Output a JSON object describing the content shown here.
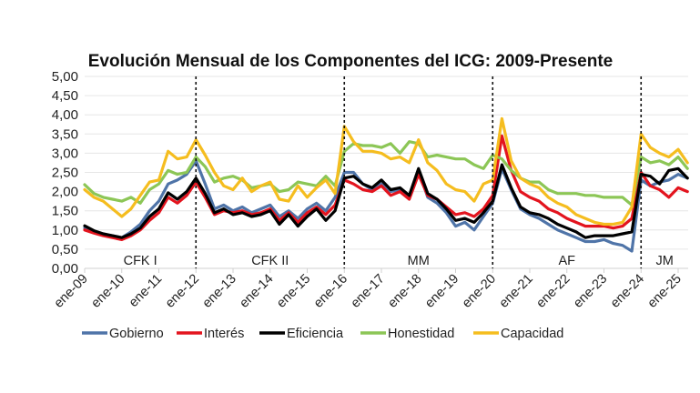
{
  "chart_data": {
    "type": "line",
    "title": "Evolución Mensual de los Componentes del ICG: 2009-Presente",
    "xlabel": "",
    "ylabel": "",
    "ylim": [
      0,
      5
    ],
    "xlim": [
      2009.0,
      2025.3
    ],
    "grid": true,
    "legend_position": "bottom",
    "y_ticks": [
      "0,00",
      "0,50",
      "1,00",
      "1,50",
      "2,00",
      "2,50",
      "3,00",
      "3,50",
      "4,00",
      "4,50",
      "5,00"
    ],
    "y_tick_values": [
      0,
      0.5,
      1,
      1.5,
      2,
      2.5,
      3,
      3.5,
      4,
      4.5,
      5
    ],
    "x_ticks": [
      "ene-09",
      "ene-10",
      "ene-11",
      "ene-12",
      "ene-13",
      "ene-14",
      "ene-15",
      "ene-16",
      "ene-17",
      "ene-18",
      "ene-19",
      "ene-20",
      "ene-21",
      "ene-22",
      "ene-23",
      "ene-24",
      "ene-25"
    ],
    "x_tick_values": [
      2009,
      2010,
      2011,
      2012,
      2013,
      2014,
      2015,
      2016,
      2017,
      2018,
      2019,
      2020,
      2021,
      2022,
      2023,
      2024,
      2025
    ],
    "periods": [
      {
        "label": "CFK I",
        "start": 2009,
        "end": 2012
      },
      {
        "label": "CFK II",
        "start": 2012,
        "end": 2016
      },
      {
        "label": "MM",
        "start": 2016,
        "end": 2020
      },
      {
        "label": "AF",
        "start": 2020,
        "end": 2024
      },
      {
        "label": "JM",
        "start": 2024,
        "end": 2025.3
      }
    ],
    "dividers": [
      2012,
      2016,
      2020,
      2024
    ],
    "x": [
      2009.0,
      2009.25,
      2009.5,
      2009.75,
      2010.0,
      2010.25,
      2010.5,
      2010.75,
      2011.0,
      2011.25,
      2011.5,
      2011.75,
      2012.0,
      2012.25,
      2012.5,
      2012.75,
      2013.0,
      2013.25,
      2013.5,
      2013.75,
      2014.0,
      2014.25,
      2014.5,
      2014.75,
      2015.0,
      2015.25,
      2015.5,
      2015.75,
      2016.0,
      2016.25,
      2016.5,
      2016.75,
      2017.0,
      2017.25,
      2017.5,
      2017.75,
      2018.0,
      2018.25,
      2018.5,
      2018.75,
      2019.0,
      2019.25,
      2019.5,
      2019.75,
      2020.0,
      2020.25,
      2020.5,
      2020.75,
      2021.0,
      2021.25,
      2021.5,
      2021.75,
      2022.0,
      2022.25,
      2022.5,
      2022.75,
      2023.0,
      2023.25,
      2023.5,
      2023.75,
      2024.0,
      2024.25,
      2024.5,
      2024.75,
      2025.0,
      2025.25
    ],
    "series": [
      {
        "name": "Gobierno",
        "color": "#4F74A8",
        "values": [
          1.05,
          0.95,
          0.88,
          0.85,
          0.8,
          0.95,
          1.15,
          1.5,
          1.75,
          2.2,
          2.3,
          2.45,
          2.8,
          2.2,
          1.55,
          1.65,
          1.5,
          1.6,
          1.45,
          1.55,
          1.65,
          1.35,
          1.5,
          1.3,
          1.55,
          1.7,
          1.5,
          1.85,
          2.5,
          2.5,
          2.2,
          2.05,
          2.2,
          2.0,
          2.05,
          1.85,
          2.55,
          1.85,
          1.7,
          1.45,
          1.1,
          1.2,
          1.0,
          1.35,
          1.7,
          2.6,
          2.05,
          1.55,
          1.4,
          1.3,
          1.15,
          1.0,
          0.9,
          0.8,
          0.7,
          0.7,
          0.75,
          0.65,
          0.6,
          0.45,
          2.3,
          2.15,
          2.25,
          2.3,
          2.45,
          2.35
        ]
      },
      {
        "name": "Interés",
        "color": "#E3141E",
        "values": [
          1.0,
          0.92,
          0.85,
          0.8,
          0.75,
          0.85,
          1.0,
          1.25,
          1.45,
          1.85,
          1.7,
          1.9,
          2.25,
          1.85,
          1.4,
          1.5,
          1.45,
          1.5,
          1.4,
          1.45,
          1.55,
          1.25,
          1.45,
          1.2,
          1.45,
          1.6,
          1.4,
          1.65,
          2.3,
          2.2,
          2.05,
          2.0,
          2.15,
          1.9,
          2.0,
          1.8,
          2.45,
          1.9,
          1.8,
          1.6,
          1.4,
          1.45,
          1.35,
          1.55,
          1.9,
          3.45,
          2.55,
          2.0,
          1.85,
          1.75,
          1.55,
          1.45,
          1.3,
          1.2,
          1.1,
          1.1,
          1.1,
          1.05,
          1.1,
          1.3,
          2.5,
          2.15,
          2.05,
          1.85,
          2.1,
          2.0
        ]
      },
      {
        "name": "Eficiencia",
        "color": "#000000",
        "values": [
          1.11,
          0.98,
          0.9,
          0.85,
          0.8,
          0.9,
          1.05,
          1.35,
          1.55,
          1.97,
          1.8,
          2.0,
          2.35,
          1.95,
          1.45,
          1.55,
          1.4,
          1.45,
          1.35,
          1.4,
          1.5,
          1.15,
          1.4,
          1.1,
          1.35,
          1.55,
          1.25,
          1.5,
          2.35,
          2.4,
          2.2,
          2.1,
          2.3,
          2.05,
          2.1,
          1.9,
          2.6,
          1.95,
          1.8,
          1.55,
          1.25,
          1.3,
          1.2,
          1.45,
          1.75,
          2.7,
          2.1,
          1.6,
          1.45,
          1.4,
          1.3,
          1.15,
          1.05,
          0.95,
          0.8,
          0.85,
          0.85,
          0.85,
          0.9,
          0.95,
          2.45,
          2.4,
          2.2,
          2.55,
          2.6,
          2.35
        ]
      },
      {
        "name": "Honestidad",
        "color": "#8CC656",
        "values": [
          2.18,
          1.95,
          1.85,
          1.8,
          1.75,
          1.85,
          1.7,
          2.05,
          2.2,
          2.55,
          2.45,
          2.5,
          2.9,
          2.65,
          2.25,
          2.35,
          2.4,
          2.3,
          2.1,
          2.15,
          2.2,
          2.0,
          2.05,
          2.25,
          2.2,
          2.15,
          2.4,
          2.15,
          3.05,
          3.25,
          3.2,
          3.2,
          3.15,
          3.25,
          3.0,
          3.3,
          3.25,
          2.9,
          2.95,
          2.9,
          2.85,
          2.85,
          2.7,
          2.6,
          2.95,
          2.85,
          2.55,
          2.35,
          2.25,
          2.25,
          2.05,
          1.95,
          1.95,
          1.95,
          1.9,
          1.9,
          1.85,
          1.85,
          1.85,
          1.65,
          2.9,
          2.75,
          2.8,
          2.7,
          2.9,
          2.6
        ]
      },
      {
        "name": "Capacidad",
        "color": "#F5BD1F",
        "values": [
          2.05,
          1.85,
          1.75,
          1.55,
          1.35,
          1.55,
          1.9,
          2.25,
          2.3,
          3.05,
          2.85,
          2.9,
          3.35,
          2.95,
          2.5,
          2.15,
          2.05,
          2.35,
          2.0,
          2.15,
          2.25,
          1.8,
          1.75,
          2.15,
          1.85,
          2.1,
          2.3,
          1.95,
          3.7,
          3.3,
          3.05,
          3.05,
          3.0,
          2.85,
          2.9,
          2.75,
          3.35,
          2.75,
          2.55,
          2.2,
          2.05,
          2.0,
          1.75,
          2.2,
          2.3,
          3.9,
          2.8,
          2.35,
          2.2,
          2.1,
          1.85,
          1.7,
          1.6,
          1.4,
          1.3,
          1.2,
          1.15,
          1.15,
          1.2,
          1.6,
          3.5,
          3.15,
          3.0,
          2.9,
          3.1,
          2.75
        ]
      }
    ]
  }
}
